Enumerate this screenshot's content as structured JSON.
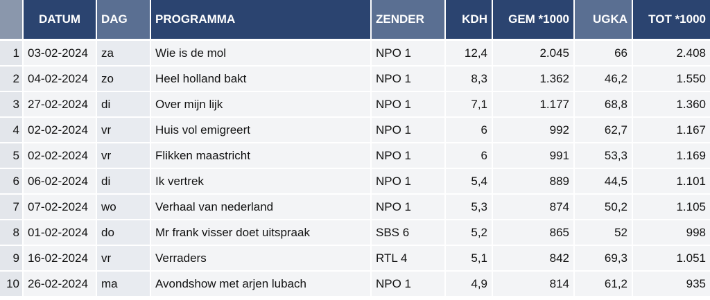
{
  "table": {
    "headers": {
      "datum": "DATUM",
      "dag": "DAG",
      "programma": "PROGRAMMA",
      "zender": "ZENDER",
      "kdh": "KDH",
      "gem": "GEM *1000",
      "ugka": "UGKA",
      "tot": "TOT *1000"
    },
    "rows": [
      {
        "nr": "1",
        "datum": "03-02-2024",
        "dag": "za",
        "programma": "Wie is de mol",
        "zender": "NPO 1",
        "kdh": "12,4",
        "gem": "2.045",
        "ugka": "66",
        "tot": "2.408"
      },
      {
        "nr": "2",
        "datum": "04-02-2024",
        "dag": "zo",
        "programma": "Heel holland bakt",
        "zender": "NPO 1",
        "kdh": "8,3",
        "gem": "1.362",
        "ugka": "46,2",
        "tot": "1.550"
      },
      {
        "nr": "3",
        "datum": "27-02-2024",
        "dag": "di",
        "programma": "Over mijn lijk",
        "zender": "NPO 1",
        "kdh": "7,1",
        "gem": "1.177",
        "ugka": "68,8",
        "tot": "1.360"
      },
      {
        "nr": "4",
        "datum": "02-02-2024",
        "dag": "vr",
        "programma": "Huis vol emigreert",
        "zender": "NPO 1",
        "kdh": "6",
        "gem": "992",
        "ugka": "62,7",
        "tot": "1.167"
      },
      {
        "nr": "5",
        "datum": "02-02-2024",
        "dag": "vr",
        "programma": "Flikken maastricht",
        "zender": "NPO 1",
        "kdh": "6",
        "gem": "991",
        "ugka": "53,3",
        "tot": "1.169"
      },
      {
        "nr": "6",
        "datum": "06-02-2024",
        "dag": "di",
        "programma": "Ik vertrek",
        "zender": "NPO 1",
        "kdh": "5,4",
        "gem": "889",
        "ugka": "44,5",
        "tot": "1.101"
      },
      {
        "nr": "7",
        "datum": "07-02-2024",
        "dag": "wo",
        "programma": "Verhaal van nederland",
        "zender": "NPO 1",
        "kdh": "5,3",
        "gem": "874",
        "ugka": "50,2",
        "tot": "1.105"
      },
      {
        "nr": "8",
        "datum": "01-02-2024",
        "dag": "do",
        "programma": "Mr frank visser doet uitspraak",
        "zender": "SBS 6",
        "kdh": "5,2",
        "gem": "865",
        "ugka": "52",
        "tot": "998"
      },
      {
        "nr": "9",
        "datum": "16-02-2024",
        "dag": "vr",
        "programma": "Verraders",
        "zender": "RTL 4",
        "kdh": "5,1",
        "gem": "842",
        "ugka": "69,3",
        "tot": "1.051"
      },
      {
        "nr": "10",
        "datum": "26-02-2024",
        "dag": "ma",
        "programma": "Avondshow met arjen lubach",
        "zender": "NPO 1",
        "kdh": "4,9",
        "gem": "814",
        "ugka": "61,2",
        "tot": "935"
      }
    ]
  },
  "colors": {
    "header_dark": "#2b4470",
    "header_light": "#5a6f92",
    "row_bg": "#f3f4f6"
  }
}
